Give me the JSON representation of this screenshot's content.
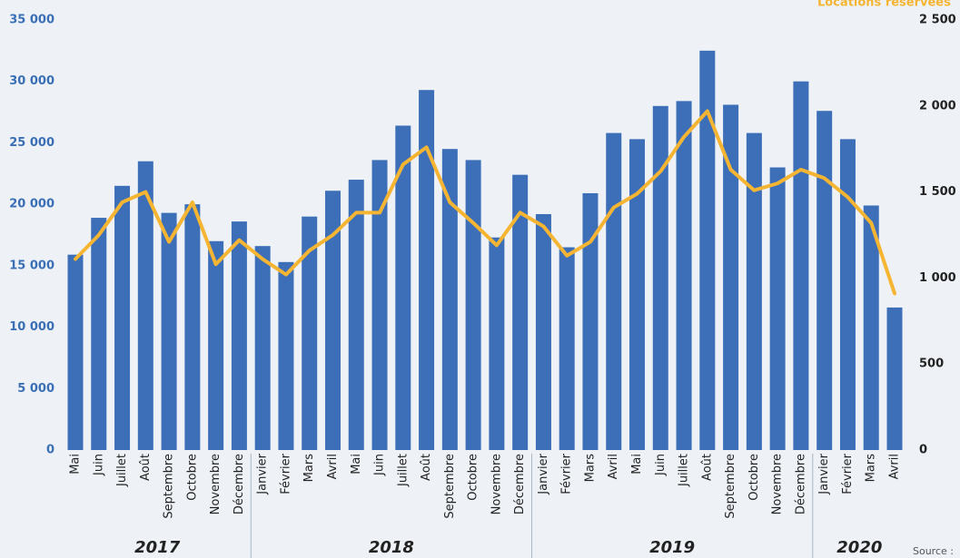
{
  "chart_data": {
    "type": "bar",
    "y2_label": "Locations réservées",
    "source": "Source :",
    "categories": [
      {
        "label": "Mai",
        "group": "2017"
      },
      {
        "label": "Juin",
        "group": "2017"
      },
      {
        "label": "Juillet",
        "group": "2017"
      },
      {
        "label": "Août",
        "group": "2017"
      },
      {
        "label": "Septembre",
        "group": "2017"
      },
      {
        "label": "Octobre",
        "group": "2017"
      },
      {
        "label": "Novembre",
        "group": "2017"
      },
      {
        "label": "Décembre",
        "group": "2017"
      },
      {
        "label": "Janvier",
        "group": "2018"
      },
      {
        "label": "Février",
        "group": "2018"
      },
      {
        "label": "Mars",
        "group": "2018"
      },
      {
        "label": "Avril",
        "group": "2018"
      },
      {
        "label": "Mai",
        "group": "2018"
      },
      {
        "label": "Juin",
        "group": "2018"
      },
      {
        "label": "Juillet",
        "group": "2018"
      },
      {
        "label": "Août",
        "group": "2018"
      },
      {
        "label": "Septembre",
        "group": "2018"
      },
      {
        "label": "Octobre",
        "group": "2018"
      },
      {
        "label": "Novembre",
        "group": "2018"
      },
      {
        "label": "Décembre",
        "group": "2018"
      },
      {
        "label": "Janvier",
        "group": "2019"
      },
      {
        "label": "Février",
        "group": "2019"
      },
      {
        "label": "Mars",
        "group": "2019"
      },
      {
        "label": "Avril",
        "group": "2019"
      },
      {
        "label": "Mai",
        "group": "2019"
      },
      {
        "label": "Juin",
        "group": "2019"
      },
      {
        "label": "Juillet",
        "group": "2019"
      },
      {
        "label": "Août",
        "group": "2019"
      },
      {
        "label": "Septembre",
        "group": "2019"
      },
      {
        "label": "Octobre",
        "group": "2019"
      },
      {
        "label": "Novembre",
        "group": "2019"
      },
      {
        "label": "Décembre",
        "group": "2019"
      },
      {
        "label": "Janvier",
        "group": "2020"
      },
      {
        "label": "Février",
        "group": "2020"
      },
      {
        "label": "Mars",
        "group": "2020"
      },
      {
        "label": "Avril",
        "group": "2020"
      }
    ],
    "series": [
      {
        "type": "bar",
        "color": "#3d6fb8",
        "values": [
          15900,
          18900,
          21500,
          23500,
          19300,
          20000,
          17000,
          18600,
          16600,
          15300,
          19000,
          21100,
          22000,
          23600,
          26400,
          29300,
          24500,
          23600,
          17300,
          22400,
          19200,
          16500,
          20900,
          25800,
          25300,
          28000,
          28400,
          32500,
          28100,
          25800,
          23000,
          30000,
          27600,
          25300,
          19900,
          11600
        ]
      },
      {
        "type": "line",
        "axis": "y2",
        "color": "#f5b533",
        "values": [
          1110,
          1250,
          1440,
          1500,
          1210,
          1440,
          1080,
          1220,
          1110,
          1020,
          1160,
          1250,
          1380,
          1380,
          1660,
          1760,
          1440,
          1320,
          1190,
          1380,
          1300,
          1130,
          1210,
          1410,
          1490,
          1620,
          1820,
          1970,
          1630,
          1510,
          1550,
          1630,
          1580,
          1470,
          1320,
          910
        ]
      }
    ],
    "ylim": [
      0,
      35000
    ],
    "yticks": [
      0,
      {
        "value": 5000,
        "label": "5 000"
      },
      {
        "value": 10000,
        "label": "10 000"
      },
      {
        "value": 15000,
        "label": "15 000"
      },
      {
        "value": 20000,
        "label": "20 000"
      },
      {
        "value": 25000,
        "label": "25 000"
      },
      {
        "value": 30000,
        "label": "30 000"
      },
      {
        "value": 35000,
        "label": "35 000"
      }
    ],
    "y2lim": [
      0,
      2500
    ],
    "y2ticks": [
      0,
      500,
      {
        "value": 1000,
        "label": "1 000"
      },
      {
        "value": 1500,
        "label": "1 500"
      },
      {
        "value": 2000,
        "label": "2 000"
      },
      {
        "value": 2500,
        "label": "2 500"
      }
    ]
  }
}
